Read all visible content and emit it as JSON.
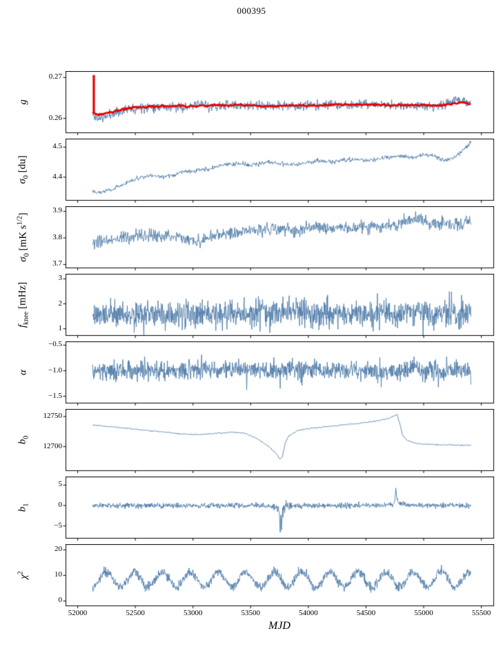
{
  "chart_data": {
    "type": "line",
    "title": "000395",
    "xlabel": "MJD",
    "legend": "none",
    "grid": false,
    "xlim": [
      51898,
      55607
    ],
    "x_data_range": [
      52130,
      55410
    ],
    "x_ticks": [
      52000,
      52500,
      53000,
      53500,
      54000,
      54500,
      55000,
      55500
    ],
    "x_tick_labels": [
      "52000",
      "52500",
      "53000",
      "53500",
      "54000",
      "54500",
      "55000",
      "55500"
    ],
    "line_color": "#4d7aa8",
    "overlay_color": "#e60000",
    "axis_color": "#000000",
    "panels": [
      {
        "id": "g",
        "ylabel_html": "<i>g</i>",
        "ylim": [
          0.2565,
          0.2715
        ],
        "yticks": [
          0.26,
          0.27
        ],
        "ytick_labels": [
          "0.26",
          "0.27"
        ],
        "noise_sd": 0.0006,
        "seed": 11,
        "step": 4,
        "trend": [
          [
            52130,
            0.2608
          ],
          [
            52170,
            0.2601
          ],
          [
            52240,
            0.2603
          ],
          [
            52320,
            0.2614
          ],
          [
            52420,
            0.2622
          ],
          [
            52550,
            0.2628
          ],
          [
            52700,
            0.263
          ],
          [
            52850,
            0.2627
          ],
          [
            53000,
            0.2629
          ],
          [
            53080,
            0.2637
          ],
          [
            53150,
            0.2628
          ],
          [
            53300,
            0.2632
          ],
          [
            53450,
            0.2632
          ],
          [
            53600,
            0.2629
          ],
          [
            53750,
            0.2632
          ],
          [
            53900,
            0.263
          ],
          [
            54050,
            0.2632
          ],
          [
            54200,
            0.2633
          ],
          [
            54350,
            0.2632
          ],
          [
            54500,
            0.2634
          ],
          [
            54650,
            0.2632
          ],
          [
            54800,
            0.2631
          ],
          [
            54950,
            0.2633
          ],
          [
            55100,
            0.2629
          ],
          [
            55200,
            0.2633
          ],
          [
            55290,
            0.2648
          ],
          [
            55350,
            0.2642
          ],
          [
            55410,
            0.2636
          ]
        ],
        "overlay": {
          "noise_sd": 0.00013,
          "seed": 77,
          "step": 9,
          "line_width": 2.7,
          "trend": [
            [
              52140,
              0.2613
            ],
            [
              52200,
              0.261
            ],
            [
              52280,
              0.2615
            ],
            [
              52380,
              0.2622
            ],
            [
              52500,
              0.2627
            ],
            [
              52650,
              0.2629
            ],
            [
              52800,
              0.263
            ],
            [
              53000,
              0.263
            ],
            [
              53200,
              0.2632
            ],
            [
              53400,
              0.2633
            ],
            [
              53600,
              0.263
            ],
            [
              53800,
              0.2631
            ],
            [
              54000,
              0.2631
            ],
            [
              54200,
              0.2633
            ],
            [
              54400,
              0.2634
            ],
            [
              54600,
              0.2633
            ],
            [
              54800,
              0.2632
            ],
            [
              55000,
              0.2633
            ],
            [
              55150,
              0.2632
            ],
            [
              55250,
              0.2635
            ],
            [
              55330,
              0.2639
            ],
            [
              55410,
              0.2636
            ]
          ],
          "spike": {
            "x": 52140,
            "y0": 0.2613,
            "y1": 0.2706,
            "line_width": 3.2
          }
        }
      },
      {
        "id": "sigma0-du",
        "ylabel_html": "<i>σ</i><sub>0</sub> [du]",
        "ylim": [
          4.323,
          4.527
        ],
        "yticks": [
          4.4,
          4.5
        ],
        "ytick_labels": [
          "4.4",
          "4.5"
        ],
        "noise_sd": 0.0035,
        "seed": 22,
        "step": 4,
        "trend": [
          [
            52130,
            4.355
          ],
          [
            52200,
            4.35
          ],
          [
            52300,
            4.36
          ],
          [
            52450,
            4.385
          ],
          [
            52550,
            4.4
          ],
          [
            52650,
            4.405
          ],
          [
            52750,
            4.4
          ],
          [
            52900,
            4.415
          ],
          [
            53000,
            4.42
          ],
          [
            53100,
            4.425
          ],
          [
            53250,
            4.44
          ],
          [
            53400,
            4.445
          ],
          [
            53500,
            4.44
          ],
          [
            53650,
            4.45
          ],
          [
            53750,
            4.445
          ],
          [
            53900,
            4.44
          ],
          [
            54000,
            4.45
          ],
          [
            54100,
            4.455
          ],
          [
            54200,
            4.45
          ],
          [
            54350,
            4.46
          ],
          [
            54500,
            4.455
          ],
          [
            54650,
            4.465
          ],
          [
            54800,
            4.47
          ],
          [
            54900,
            4.465
          ],
          [
            55000,
            4.475
          ],
          [
            55100,
            4.47
          ],
          [
            55180,
            4.455
          ],
          [
            55260,
            4.465
          ],
          [
            55340,
            4.49
          ],
          [
            55410,
            4.515
          ]
        ]
      },
      {
        "id": "sigma0-mk",
        "ylabel_html": "<i>σ</i><sub>0</sub> [mK s<sup>1/2</sup>]",
        "ylim": [
          3.687,
          3.918
        ],
        "yticks": [
          3.7,
          3.8,
          3.9
        ],
        "ytick_labels": [
          "3.7",
          "3.8",
          "3.9"
        ],
        "noise_sd": 0.012,
        "seed": 33,
        "step": 4,
        "trend": [
          [
            52130,
            3.775
          ],
          [
            52250,
            3.79
          ],
          [
            52400,
            3.8
          ],
          [
            52600,
            3.805
          ],
          [
            52750,
            3.81
          ],
          [
            52900,
            3.8
          ],
          [
            53050,
            3.785
          ],
          [
            53200,
            3.81
          ],
          [
            53350,
            3.82
          ],
          [
            53500,
            3.83
          ],
          [
            53700,
            3.835
          ],
          [
            53900,
            3.83
          ],
          [
            54100,
            3.84
          ],
          [
            54300,
            3.835
          ],
          [
            54500,
            3.84
          ],
          [
            54700,
            3.85
          ],
          [
            54850,
            3.86
          ],
          [
            54950,
            3.875
          ],
          [
            55050,
            3.85
          ],
          [
            55200,
            3.855
          ],
          [
            55300,
            3.85
          ],
          [
            55410,
            3.86
          ]
        ]
      },
      {
        "id": "fknee",
        "ylabel_html": "<i>f</i><sub>knee</sub> [mHz]",
        "ylim": [
          0.73,
          3.19
        ],
        "yticks": [
          1,
          2,
          3
        ],
        "ytick_labels": [
          "1",
          "2",
          "3"
        ],
        "noise_sd": 0.27,
        "spike_prob": 0.025,
        "spike_scale": 0.5,
        "seed": 44,
        "step": 3,
        "trend": [
          [
            52130,
            1.55
          ],
          [
            52400,
            1.6
          ],
          [
            53000,
            1.58
          ],
          [
            53400,
            1.62
          ],
          [
            53700,
            1.7
          ],
          [
            53820,
            1.68
          ],
          [
            54000,
            1.6
          ],
          [
            54400,
            1.58
          ],
          [
            54800,
            1.62
          ],
          [
            55100,
            1.65
          ],
          [
            55250,
            1.6
          ],
          [
            55410,
            1.62
          ]
        ]
      },
      {
        "id": "alpha",
        "ylabel_html": "<i>α</i>",
        "ylim": [
          -1.633,
          -0.433
        ],
        "yticks": [
          -1.5,
          -1.0,
          -0.5
        ],
        "ytick_labels": [
          "−1.5",
          "−1.0",
          "−0.5"
        ],
        "noise_sd": 0.09,
        "spike_prob": 0.02,
        "spike_scale": 0.18,
        "seed": 55,
        "step": 3,
        "trend": [
          [
            52130,
            -1.0
          ],
          [
            53000,
            -1.0
          ],
          [
            54000,
            -0.99
          ],
          [
            55410,
            -1.0
          ]
        ]
      },
      {
        "id": "b0",
        "ylabel_html": "<i>b</i><sub>0</sub>",
        "ylim": [
          12660,
          12762
        ],
        "yticks": [
          12700,
          12750
        ],
        "ytick_labels": [
          "12700",
          "12750"
        ],
        "noise_sd": 0.5,
        "seed": 66,
        "step": 5,
        "trend": [
          [
            52130,
            12736
          ],
          [
            52300,
            12733
          ],
          [
            52500,
            12729
          ],
          [
            52700,
            12725
          ],
          [
            52900,
            12721
          ],
          [
            53050,
            12720
          ],
          [
            53200,
            12722
          ],
          [
            53350,
            12724
          ],
          [
            53450,
            12722
          ],
          [
            53550,
            12714
          ],
          [
            53650,
            12701
          ],
          [
            53720,
            12689
          ],
          [
            53755,
            12679
          ],
          [
            53775,
            12683
          ],
          [
            53800,
            12706
          ],
          [
            53830,
            12718
          ],
          [
            53900,
            12726
          ],
          [
            54000,
            12730
          ],
          [
            54150,
            12733
          ],
          [
            54300,
            12736
          ],
          [
            54450,
            12739
          ],
          [
            54600,
            12743
          ],
          [
            54700,
            12747
          ],
          [
            54755,
            12752
          ],
          [
            54770,
            12753
          ],
          [
            54790,
            12740
          ],
          [
            54820,
            12718
          ],
          [
            54860,
            12710
          ],
          [
            54920,
            12706
          ],
          [
            55000,
            12704
          ],
          [
            55150,
            12703
          ],
          [
            55410,
            12702
          ]
        ]
      },
      {
        "id": "b1",
        "ylabel_html": "<i>b</i><sub>1</sub>",
        "ylim": [
          -8,
          7
        ],
        "yticks": [
          -5,
          0,
          5
        ],
        "ytick_labels": [
          "−5",
          "0",
          "5"
        ],
        "noise_sd": 0.32,
        "seed": 88,
        "step": 3,
        "noise_regions": [
          {
            "x0": 53690,
            "x1": 53860,
            "factor": 2.2
          }
        ],
        "trend": [
          [
            52130,
            0
          ],
          [
            53600,
            0
          ],
          [
            53700,
            -0.2
          ],
          [
            53735,
            -0.5
          ],
          [
            53748,
            -1.8
          ],
          [
            53756,
            -6.9
          ],
          [
            53762,
            -3
          ],
          [
            53767,
            -5.6
          ],
          [
            53773,
            -2.2
          ],
          [
            53782,
            -1
          ],
          [
            53800,
            -0.5
          ],
          [
            53830,
            -0.2
          ],
          [
            53900,
            0
          ],
          [
            54600,
            0
          ],
          [
            54740,
            0.2
          ],
          [
            54752,
            1.4
          ],
          [
            54759,
            4.9
          ],
          [
            54766,
            2
          ],
          [
            54775,
            0.9
          ],
          [
            54800,
            0.4
          ],
          [
            54860,
            0.1
          ],
          [
            54950,
            0
          ],
          [
            55410,
            0
          ]
        ]
      },
      {
        "id": "chi2",
        "ylabel_html": "<i>χ</i><sup>2</sup>",
        "ylim": [
          -1.9,
          22.1
        ],
        "yticks": [
          0,
          10,
          20
        ],
        "ytick_labels": [
          "0",
          "10",
          "20"
        ],
        "noise_sd": 0.9,
        "seed": 99,
        "step": 3,
        "oscillation": {
          "amplitude": 3.0,
          "period": 242,
          "x0": 52190
        },
        "trend": [
          [
            52130,
            8.4
          ],
          [
            55410,
            8.4
          ]
        ]
      }
    ]
  }
}
